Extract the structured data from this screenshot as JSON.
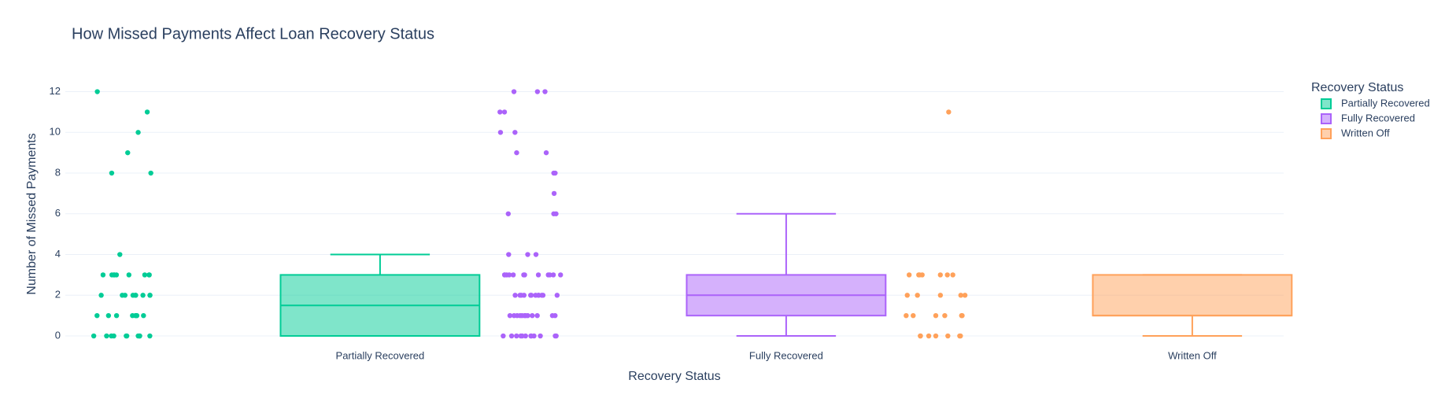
{
  "chart_data": {
    "type": "box",
    "title": "How Missed Payments Affect Loan Recovery Status",
    "x_label": "Recovery Status",
    "y_label": "Number of Missed Payments",
    "legend_title": "Recovery Status",
    "categories": [
      "Partially Recovered",
      "Fully Recovered",
      "Written Off"
    ],
    "ylim": [
      -0.5,
      12.6
    ],
    "yticks": [
      0,
      2,
      4,
      6,
      8,
      10,
      12
    ],
    "grid": true,
    "series": [
      {
        "name": "Partially Recovered",
        "color": "#00cc96",
        "q1": 0,
        "median": 1.5,
        "q3": 3,
        "lowerfence": 0,
        "upperfence": 4,
        "points": [
          0,
          0,
          0,
          0,
          0,
          0,
          0,
          0,
          0,
          0,
          1,
          1,
          1,
          1,
          1,
          1,
          1,
          1,
          2,
          2,
          2,
          2,
          2,
          2,
          2,
          2,
          2,
          3,
          3,
          3,
          3,
          3,
          3,
          3,
          3,
          3,
          4,
          8,
          8,
          9,
          10,
          11,
          12
        ]
      },
      {
        "name": "Fully Recovered",
        "color": "#ab63fa",
        "q1": 1,
        "median": 2,
        "q3": 3,
        "lowerfence": 0,
        "upperfence": 6,
        "points": [
          0,
          0,
          0,
          0,
          0,
          0,
          0,
          0,
          0,
          0,
          0,
          0,
          1,
          1,
          1,
          1,
          1,
          1,
          1,
          1,
          1,
          1,
          1,
          1,
          2,
          2,
          2,
          2,
          2,
          2,
          2,
          2,
          2,
          2,
          2,
          2,
          3,
          3,
          3,
          3,
          3,
          3,
          3,
          3,
          3,
          3,
          3,
          3,
          4,
          4,
          4,
          6,
          6,
          6,
          7,
          8,
          8,
          9,
          9,
          10,
          10,
          11,
          11,
          12,
          12,
          12
        ]
      },
      {
        "name": "Written Off",
        "color": "#ffa15a",
        "q1": 1,
        "median": 1,
        "q3": 3,
        "lowerfence": 0,
        "upperfence": 3,
        "points": [
          0,
          0,
          0,
          0,
          0,
          0,
          0,
          1,
          1,
          1,
          1,
          1,
          1,
          2,
          2,
          2,
          2,
          2,
          3,
          3,
          3,
          3,
          3,
          3,
          3,
          11
        ]
      }
    ]
  }
}
